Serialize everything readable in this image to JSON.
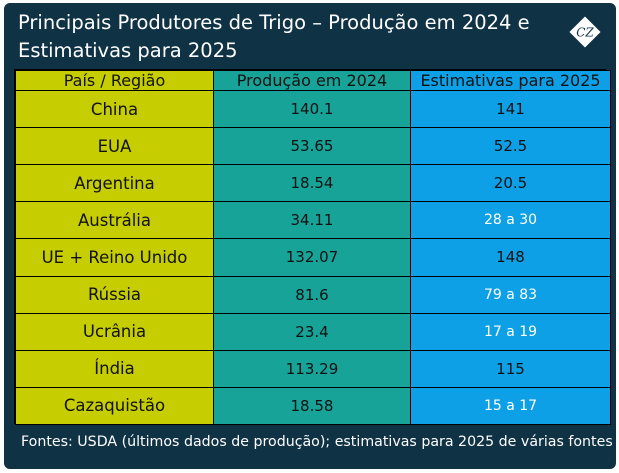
{
  "title": "Principais Produtores de Trigo – Produção em 2024 e Estimativas para 2025",
  "logo_text": "CZ",
  "headers": [
    "País / Região",
    "Produção em 2024",
    "Estimativas para 2025"
  ],
  "rows": [
    {
      "country": "China",
      "production_2024": "140.1",
      "estimate_2025": "141"
    },
    {
      "country": "EUA",
      "production_2024": "53.65",
      "estimate_2025": "52.5"
    },
    {
      "country": "Argentina",
      "production_2024": "18.54",
      "estimate_2025": "20.5"
    },
    {
      "country": "Austrália",
      "production_2024": "34.11",
      "estimate_2025": "28 a 30"
    },
    {
      "country": "UE + Reino Unido",
      "production_2024": "132.07",
      "estimate_2025": "148"
    },
    {
      "country": "Rússia",
      "production_2024": "81.6",
      "estimate_2025": "79 a 83"
    },
    {
      "country": "Ucrânia",
      "production_2024": "23.4",
      "estimate_2025": "17 a 19"
    },
    {
      "country": "Índia",
      "production_2024": "113.29",
      "estimate_2025": "115"
    },
    {
      "country": "Cazaquistão",
      "production_2024": "18.58",
      "estimate_2025": "15 a 17"
    }
  ],
  "footer": "Fontes: USDA (últimos dados de produção); estimativas para 2025 de várias fontes",
  "colors": {
    "background": "#0f3245",
    "country_column": "#c6cd00",
    "production_column": "#17a398",
    "estimate_column": "#0ea0e6"
  }
}
